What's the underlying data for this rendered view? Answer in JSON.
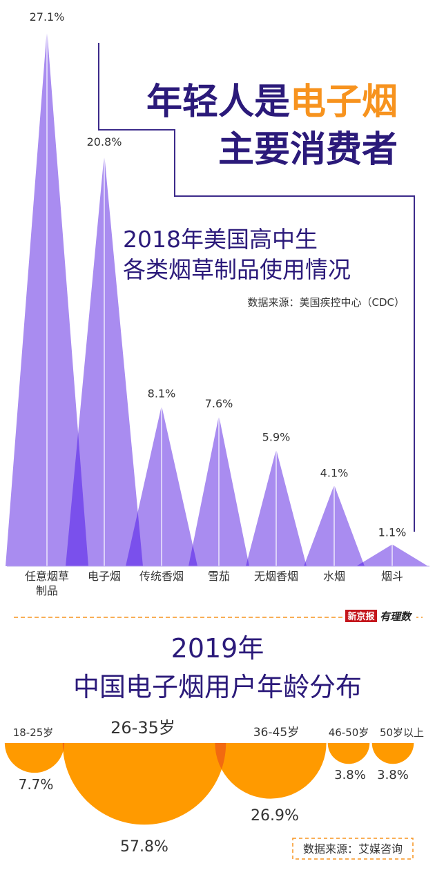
{
  "header": {
    "line1_a": "年轻人是",
    "line1_b": "电子烟",
    "line2": "主要消费者"
  },
  "chart1": {
    "title_line1": "2018年美国高中生",
    "title_line2": "各类烟草制品使用情况",
    "source": "数据来源：美国疾控中心（CDC）"
  },
  "logo": {
    "left": "新京报",
    "right": "有理数"
  },
  "chart2": {
    "title_line1": "2019年",
    "title_line2": "中国电子烟用户年龄分布",
    "source": "数据来源：艾媒咨询"
  },
  "colors": {
    "purple": "#a98cf0",
    "purple_overlap": "#7a50ec",
    "navy": "#2b1a7a",
    "orange": "#ff9a00",
    "orange_overlap": "#f26a10",
    "title_orange": "#f7931e",
    "line": "#3c2a8a"
  },
  "chart_data": [
    {
      "type": "area",
      "categories": [
        "任意烟草制品",
        "电子烟",
        "传统香烟",
        "雪茄",
        "无烟香烟",
        "水烟",
        "烟斗"
      ],
      "values": [
        27.1,
        20.8,
        8.1,
        7.6,
        5.9,
        4.1,
        1.1
      ],
      "value_labels": [
        "27.1%",
        "20.8%",
        "8.1%",
        "7.6%",
        "5.9%",
        "4.1%",
        "1.1%"
      ],
      "title": "2018年美国高中生各类烟草制品使用情况",
      "ylim": [
        0,
        27.1
      ]
    },
    {
      "type": "pie",
      "categories": [
        "18-25岁",
        "26-35岁",
        "36-45岁",
        "46-50岁",
        "50岁以上"
      ],
      "values": [
        7.7,
        57.8,
        26.9,
        3.8,
        3.8
      ],
      "value_labels": [
        "7.7%",
        "57.8%",
        "26.9%",
        "3.8%",
        "3.8%"
      ],
      "title": "2019年中国电子烟用户年龄分布"
    }
  ]
}
